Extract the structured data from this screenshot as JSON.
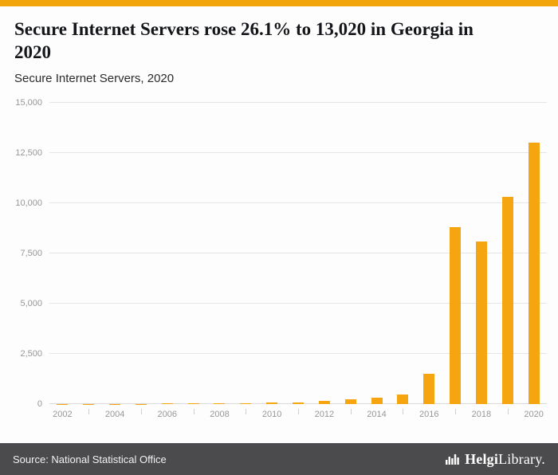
{
  "header": {
    "title": "Secure Internet Servers rose 26.1% to 13,020 in Georgia in 2020",
    "subtitle": "Secure Internet Servers, 2020"
  },
  "chart_data": {
    "type": "bar",
    "title": "Secure Internet Servers, 2020",
    "categories": [
      "2002",
      "2003",
      "2004",
      "2005",
      "2006",
      "2007",
      "2008",
      "2009",
      "2010",
      "2011",
      "2012",
      "2013",
      "2014",
      "2015",
      "2016",
      "2017",
      "2018",
      "2019",
      "2020"
    ],
    "values": [
      6,
      8,
      10,
      14,
      18,
      24,
      32,
      45,
      60,
      90,
      150,
      230,
      320,
      470,
      1500,
      8800,
      8100,
      10325,
      13020
    ],
    "xtick_labels": [
      "2002",
      "2004",
      "2006",
      "2008",
      "2010",
      "2012",
      "2014",
      "2016",
      "2018",
      "2020"
    ],
    "yticks": [
      {
        "value": 0,
        "label": "0"
      },
      {
        "value": 2500,
        "label": "2,500"
      },
      {
        "value": 5000,
        "label": "5,000"
      },
      {
        "value": 7500,
        "label": "7,500"
      },
      {
        "value": 10000,
        "label": "10,000"
      },
      {
        "value": 12500,
        "label": "12,500"
      },
      {
        "value": 15000,
        "label": "15,000"
      }
    ],
    "ylim": [
      0,
      15000
    ],
    "xlabel": "",
    "ylabel": "",
    "grid": true,
    "legend": false,
    "bar_color": "#F5A50F"
  },
  "footer": {
    "source": "Source: National Statistical Office",
    "logo": {
      "bold": "Helgi",
      "regular": "Library",
      "mark": "."
    }
  },
  "colors": {
    "accent": "#F2A50A",
    "footer_bg": "#4B4B4D",
    "grid": "#E5E5E5",
    "axis_text": "#979797"
  }
}
